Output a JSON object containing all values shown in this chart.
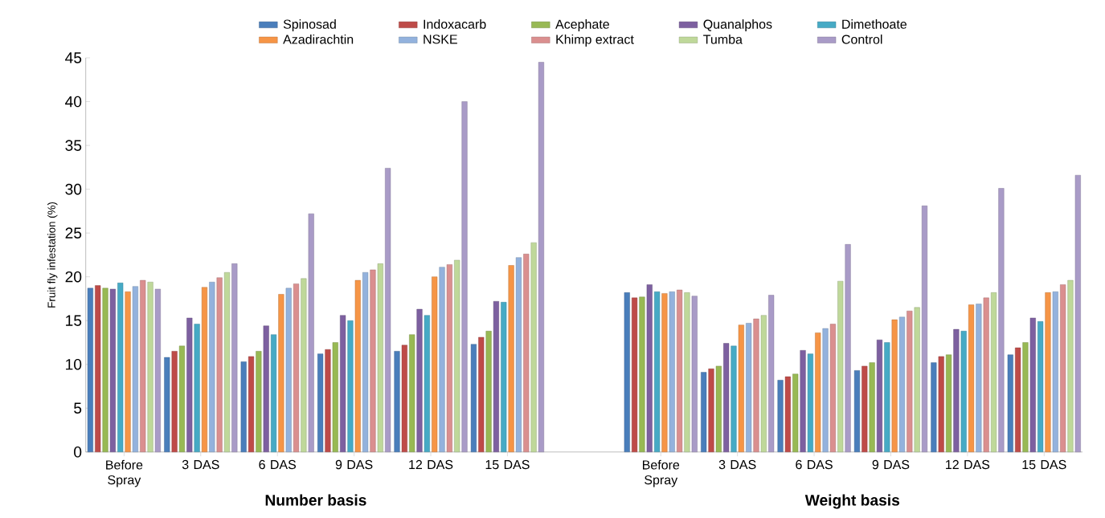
{
  "chart_data": {
    "type": "bar",
    "ylabel": "Fruit fly infestation (%)",
    "categories": [
      "Before Spray",
      "3 DAS",
      "6 DAS",
      "9 DAS",
      "12 DAS",
      "15 DAS",
      null,
      "Before Spray",
      "3 DAS",
      "6 DAS",
      "9 DAS",
      "12 DAS",
      "15 DAS"
    ],
    "ylim": [
      0,
      45
    ],
    "yticks": [
      0,
      5,
      10,
      15,
      20,
      25,
      30,
      35,
      40,
      45
    ],
    "grid": false,
    "legend": "top",
    "annotations": [
      "Number basis",
      "Weight basis"
    ],
    "series": [
      {
        "name": "Spinosad",
        "color": "#4a7ebb",
        "values": [
          18.7,
          10.8,
          10.3,
          11.2,
          11.5,
          12.3,
          null,
          18.2,
          9.1,
          8.2,
          9.3,
          10.2,
          11.1
        ]
      },
      {
        "name": "Indoxacarb",
        "color": "#be4b48",
        "values": [
          19.0,
          11.5,
          10.9,
          11.7,
          12.2,
          13.1,
          null,
          17.6,
          9.5,
          8.6,
          9.8,
          10.9,
          11.9
        ]
      },
      {
        "name": "Acephate",
        "color": "#98b954",
        "values": [
          18.7,
          12.1,
          11.5,
          12.5,
          13.4,
          13.8,
          null,
          17.7,
          9.8,
          8.9,
          10.2,
          11.1,
          12.5
        ]
      },
      {
        "name": "Quanalphos",
        "color": "#7d60a0",
        "values": [
          18.6,
          15.3,
          14.4,
          15.6,
          16.3,
          17.2,
          null,
          19.1,
          12.4,
          11.6,
          12.8,
          14.0,
          15.3
        ]
      },
      {
        "name": "Dimethoate",
        "color": "#46aac5",
        "values": [
          19.3,
          14.6,
          13.4,
          15.0,
          15.6,
          17.1,
          null,
          18.3,
          12.1,
          11.2,
          12.5,
          13.8,
          14.9
        ]
      },
      {
        "name": "Azadirachtin",
        "color": "#f69546",
        "values": [
          18.3,
          18.8,
          18.0,
          19.6,
          20.0,
          21.3,
          null,
          18.1,
          14.5,
          13.6,
          15.1,
          16.8,
          18.2
        ]
      },
      {
        "name": "NSKE",
        "color": "#93b2dd",
        "values": [
          18.9,
          19.4,
          18.7,
          20.5,
          21.1,
          22.2,
          null,
          18.3,
          14.7,
          14.1,
          15.4,
          16.9,
          18.3
        ]
      },
      {
        "name": "Khimp extract",
        "color": "#da8f8f",
        "values": [
          19.6,
          19.9,
          19.2,
          20.8,
          21.4,
          22.6,
          null,
          18.5,
          15.2,
          14.6,
          16.1,
          17.6,
          19.1
        ]
      },
      {
        "name": "Tumba",
        "color": "#bfd89a",
        "values": [
          19.4,
          20.5,
          19.8,
          21.5,
          21.9,
          23.9,
          null,
          18.2,
          15.6,
          19.5,
          16.5,
          18.2,
          19.6
        ]
      },
      {
        "name": "Control",
        "color": "#a99bc7",
        "values": [
          18.6,
          21.5,
          27.2,
          32.4,
          40.0,
          44.5,
          null,
          17.8,
          17.9,
          23.7,
          28.1,
          30.1,
          31.6
        ]
      }
    ]
  }
}
